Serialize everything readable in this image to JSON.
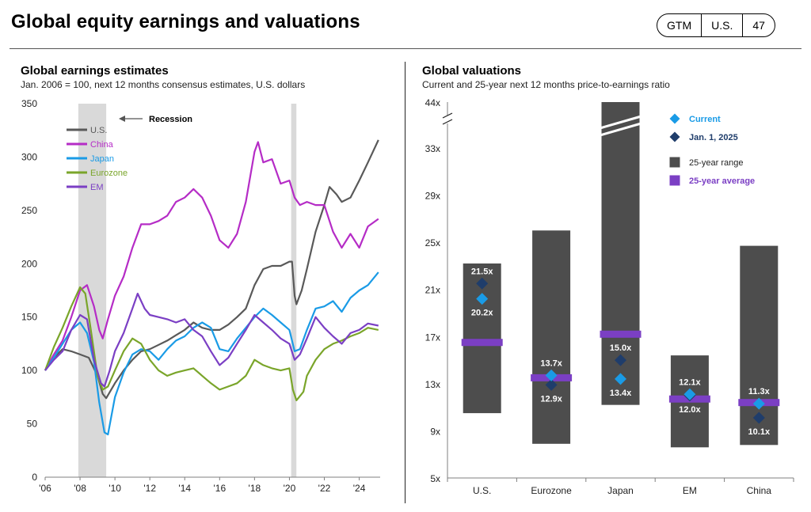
{
  "header": {
    "title": "Global equity earnings and valuations",
    "tags": [
      "GTM",
      "U.S.",
      "47"
    ]
  },
  "left_panel": {
    "title": "Global earnings estimates",
    "subtitle": "Jan. 2006 = 100, next 12 months consensus estimates, U.S. dollars",
    "recession_label": "Recession"
  },
  "right_panel": {
    "title": "Global valuations",
    "subtitle": "Current and 25-year next 12 months price-to-earnings ratio"
  },
  "chart_data": [
    {
      "type": "line",
      "title": "Global earnings estimates",
      "subtitle": "Jan. 2006 = 100, next 12 months consensus estimates, U.S. dollars",
      "ylim": [
        0,
        350
      ],
      "yticks": [
        0,
        50,
        100,
        150,
        200,
        250,
        300,
        350
      ],
      "xlim": [
        2006,
        2025.2
      ],
      "xticks": [
        2006,
        2008,
        2010,
        2012,
        2014,
        2016,
        2018,
        2020,
        2022,
        2024
      ],
      "xtick_labels": [
        "'06",
        "'08",
        "'10",
        "'12",
        "'14",
        "'16",
        "'18",
        "'20",
        "'22",
        "'24"
      ],
      "recessions": [
        [
          2007.9,
          2009.5
        ],
        [
          2020.1,
          2020.4
        ]
      ],
      "legend": "top-left",
      "series": [
        {
          "name": "U.S.",
          "color": "#595959",
          "points": [
            [
              2006,
              100
            ],
            [
              2006.5,
              112
            ],
            [
              2007,
              120
            ],
            [
              2007.5,
              118
            ],
            [
              2008,
              115
            ],
            [
              2008.5,
              112
            ],
            [
              2009,
              95
            ],
            [
              2009.3,
              78
            ],
            [
              2009.5,
              74
            ],
            [
              2010,
              88
            ],
            [
              2010.5,
              100
            ],
            [
              2011,
              110
            ],
            [
              2011.5,
              118
            ],
            [
              2012,
              120
            ],
            [
              2012.5,
              124
            ],
            [
              2013,
              128
            ],
            [
              2013.5,
              133
            ],
            [
              2014,
              138
            ],
            [
              2014.5,
              145
            ],
            [
              2015,
              140
            ],
            [
              2015.5,
              138
            ],
            [
              2016,
              138
            ],
            [
              2016.5,
              143
            ],
            [
              2017,
              150
            ],
            [
              2017.5,
              158
            ],
            [
              2018,
              180
            ],
            [
              2018.5,
              195
            ],
            [
              2019,
              198
            ],
            [
              2019.5,
              198
            ],
            [
              2020,
              202
            ],
            [
              2020.15,
              202
            ],
            [
              2020.3,
              170
            ],
            [
              2020.4,
              162
            ],
            [
              2020.7,
              175
            ],
            [
              2021,
              195
            ],
            [
              2021.5,
              230
            ],
            [
              2022,
              255
            ],
            [
              2022.3,
              272
            ],
            [
              2022.7,
              265
            ],
            [
              2023,
              258
            ],
            [
              2023.5,
              262
            ],
            [
              2024,
              278
            ],
            [
              2024.5,
              295
            ],
            [
              2025.1,
              316
            ]
          ]
        },
        {
          "name": "China",
          "color": "#b52cc6",
          "points": [
            [
              2006,
              100
            ],
            [
              2006.5,
              115
            ],
            [
              2007,
              128
            ],
            [
              2007.5,
              150
            ],
            [
              2008,
              175
            ],
            [
              2008.4,
              180
            ],
            [
              2008.8,
              160
            ],
            [
              2009.1,
              138
            ],
            [
              2009.3,
              130
            ],
            [
              2009.6,
              148
            ],
            [
              2010,
              170
            ],
            [
              2010.5,
              188
            ],
            [
              2011,
              215
            ],
            [
              2011.5,
              237
            ],
            [
              2012,
              237
            ],
            [
              2012.5,
              240
            ],
            [
              2013,
              245
            ],
            [
              2013.5,
              258
            ],
            [
              2014,
              262
            ],
            [
              2014.5,
              270
            ],
            [
              2015,
              262
            ],
            [
              2015.5,
              245
            ],
            [
              2016,
              222
            ],
            [
              2016.5,
              215
            ],
            [
              2017,
              228
            ],
            [
              2017.5,
              258
            ],
            [
              2018,
              305
            ],
            [
              2018.2,
              314
            ],
            [
              2018.5,
              295
            ],
            [
              2019,
              298
            ],
            [
              2019.5,
              275
            ],
            [
              2020,
              278
            ],
            [
              2020.3,
              262
            ],
            [
              2020.6,
              255
            ],
            [
              2021,
              258
            ],
            [
              2021.5,
              255
            ],
            [
              2022,
              255
            ],
            [
              2022.5,
              230
            ],
            [
              2023,
              215
            ],
            [
              2023.5,
              228
            ],
            [
              2024,
              215
            ],
            [
              2024.5,
              235
            ],
            [
              2025.1,
              242
            ]
          ]
        },
        {
          "name": "Japan",
          "color": "#1a9be6",
          "points": [
            [
              2006,
              100
            ],
            [
              2006.5,
              112
            ],
            [
              2007,
              125
            ],
            [
              2007.5,
              138
            ],
            [
              2008,
              145
            ],
            [
              2008.4,
              135
            ],
            [
              2008.8,
              108
            ],
            [
              2009.1,
              70
            ],
            [
              2009.4,
              42
            ],
            [
              2009.6,
              40
            ],
            [
              2010,
              75
            ],
            [
              2010.5,
              98
            ],
            [
              2011,
              115
            ],
            [
              2011.5,
              120
            ],
            [
              2012,
              118
            ],
            [
              2012.5,
              110
            ],
            [
              2013,
              120
            ],
            [
              2013.5,
              128
            ],
            [
              2014,
              132
            ],
            [
              2014.5,
              140
            ],
            [
              2015,
              145
            ],
            [
              2015.5,
              140
            ],
            [
              2016,
              120
            ],
            [
              2016.5,
              118
            ],
            [
              2017,
              130
            ],
            [
              2017.5,
              140
            ],
            [
              2018,
              150
            ],
            [
              2018.5,
              158
            ],
            [
              2019,
              152
            ],
            [
              2019.5,
              145
            ],
            [
              2020,
              138
            ],
            [
              2020.3,
              118
            ],
            [
              2020.6,
              120
            ],
            [
              2021,
              138
            ],
            [
              2021.5,
              158
            ],
            [
              2022,
              160
            ],
            [
              2022.5,
              165
            ],
            [
              2023,
              155
            ],
            [
              2023.5,
              168
            ],
            [
              2024,
              175
            ],
            [
              2024.5,
              180
            ],
            [
              2025.1,
              192
            ]
          ]
        },
        {
          "name": "Eurozone",
          "color": "#7aa52a",
          "points": [
            [
              2006,
              100
            ],
            [
              2006.5,
              122
            ],
            [
              2007,
              140
            ],
            [
              2007.5,
              160
            ],
            [
              2008,
              178
            ],
            [
              2008.3,
              172
            ],
            [
              2008.6,
              140
            ],
            [
              2009,
              95
            ],
            [
              2009.3,
              82
            ],
            [
              2009.6,
              85
            ],
            [
              2010,
              100
            ],
            [
              2010.5,
              118
            ],
            [
              2011,
              130
            ],
            [
              2011.5,
              125
            ],
            [
              2012,
              110
            ],
            [
              2012.5,
              100
            ],
            [
              2013,
              95
            ],
            [
              2013.5,
              98
            ],
            [
              2014,
              100
            ],
            [
              2014.5,
              102
            ],
            [
              2015,
              95
            ],
            [
              2015.5,
              88
            ],
            [
              2016,
              82
            ],
            [
              2016.5,
              85
            ],
            [
              2017,
              88
            ],
            [
              2017.5,
              95
            ],
            [
              2018,
              110
            ],
            [
              2018.5,
              105
            ],
            [
              2019,
              102
            ],
            [
              2019.5,
              100
            ],
            [
              2020,
              102
            ],
            [
              2020.2,
              82
            ],
            [
              2020.4,
              72
            ],
            [
              2020.8,
              80
            ],
            [
              2021,
              95
            ],
            [
              2021.5,
              110
            ],
            [
              2022,
              120
            ],
            [
              2022.5,
              125
            ],
            [
              2023,
              128
            ],
            [
              2023.5,
              132
            ],
            [
              2024,
              135
            ],
            [
              2024.5,
              140
            ],
            [
              2025.1,
              138
            ]
          ]
        },
        {
          "name": "EM",
          "color": "#7b3fc4",
          "points": [
            [
              2006,
              100
            ],
            [
              2006.5,
              110
            ],
            [
              2007,
              118
            ],
            [
              2007.5,
              138
            ],
            [
              2008,
              152
            ],
            [
              2008.4,
              148
            ],
            [
              2008.8,
              110
            ],
            [
              2009.2,
              88
            ],
            [
              2009.4,
              85
            ],
            [
              2009.7,
              100
            ],
            [
              2010,
              118
            ],
            [
              2010.5,
              135
            ],
            [
              2011,
              158
            ],
            [
              2011.3,
              172
            ],
            [
              2011.7,
              158
            ],
            [
              2012,
              152
            ],
            [
              2012.5,
              150
            ],
            [
              2013,
              148
            ],
            [
              2013.5,
              145
            ],
            [
              2014,
              148
            ],
            [
              2014.5,
              138
            ],
            [
              2015,
              132
            ],
            [
              2015.5,
              118
            ],
            [
              2016,
              105
            ],
            [
              2016.5,
              112
            ],
            [
              2017,
              125
            ],
            [
              2017.5,
              138
            ],
            [
              2018,
              152
            ],
            [
              2018.5,
              145
            ],
            [
              2019,
              138
            ],
            [
              2019.5,
              130
            ],
            [
              2020,
              125
            ],
            [
              2020.3,
              110
            ],
            [
              2020.6,
              115
            ],
            [
              2021,
              130
            ],
            [
              2021.5,
              150
            ],
            [
              2022,
              140
            ],
            [
              2022.5,
              132
            ],
            [
              2023,
              125
            ],
            [
              2023.5,
              135
            ],
            [
              2024,
              138
            ],
            [
              2024.5,
              144
            ],
            [
              2025.1,
              142
            ]
          ]
        }
      ]
    },
    {
      "type": "range-bar",
      "title": "Global valuations",
      "subtitle": "Current and 25-year next 12 months price-to-earnings ratio",
      "yticks": [
        5,
        9,
        13,
        17,
        21,
        25,
        29,
        33,
        44
      ],
      "ytick_labels": [
        "5x",
        "9x",
        "13x",
        "17x",
        "21x",
        "25x",
        "29x",
        "33x",
        "44x"
      ],
      "axis_break": true,
      "categories": [
        "U.S.",
        "Eurozone",
        "Japan",
        "EM",
        "China"
      ],
      "legend": "top-right",
      "legend_entries": [
        {
          "label": "Current",
          "color": "#1a9be6",
          "shape": "diamond"
        },
        {
          "label": "Jan. 1, 2025",
          "color": "#1f3d6b",
          "shape": "diamond"
        },
        {
          "label": "25-year range",
          "color": "#4d4d4d",
          "shape": "square"
        },
        {
          "label": "25-year average",
          "color": "#7b3fc4",
          "shape": "square"
        }
      ],
      "range_low": [
        10.5,
        7.9,
        11.2,
        7.6,
        7.8
      ],
      "range_high": [
        23.2,
        26.0,
        44,
        15.4,
        24.7
      ],
      "average": [
        16.5,
        13.5,
        17.2,
        11.7,
        11.4
      ],
      "current": [
        20.2,
        13.7,
        13.4,
        12.1,
        11.3
      ],
      "jan_2025": [
        21.5,
        12.9,
        15.0,
        12.0,
        10.1
      ],
      "current_labels": [
        "20.2x",
        "13.7x",
        "13.4x",
        "12.1x",
        "11.3x"
      ],
      "jan_2025_labels": [
        "21.5x",
        "12.9x",
        "15.0x",
        "12.0x",
        "10.1x"
      ]
    }
  ]
}
